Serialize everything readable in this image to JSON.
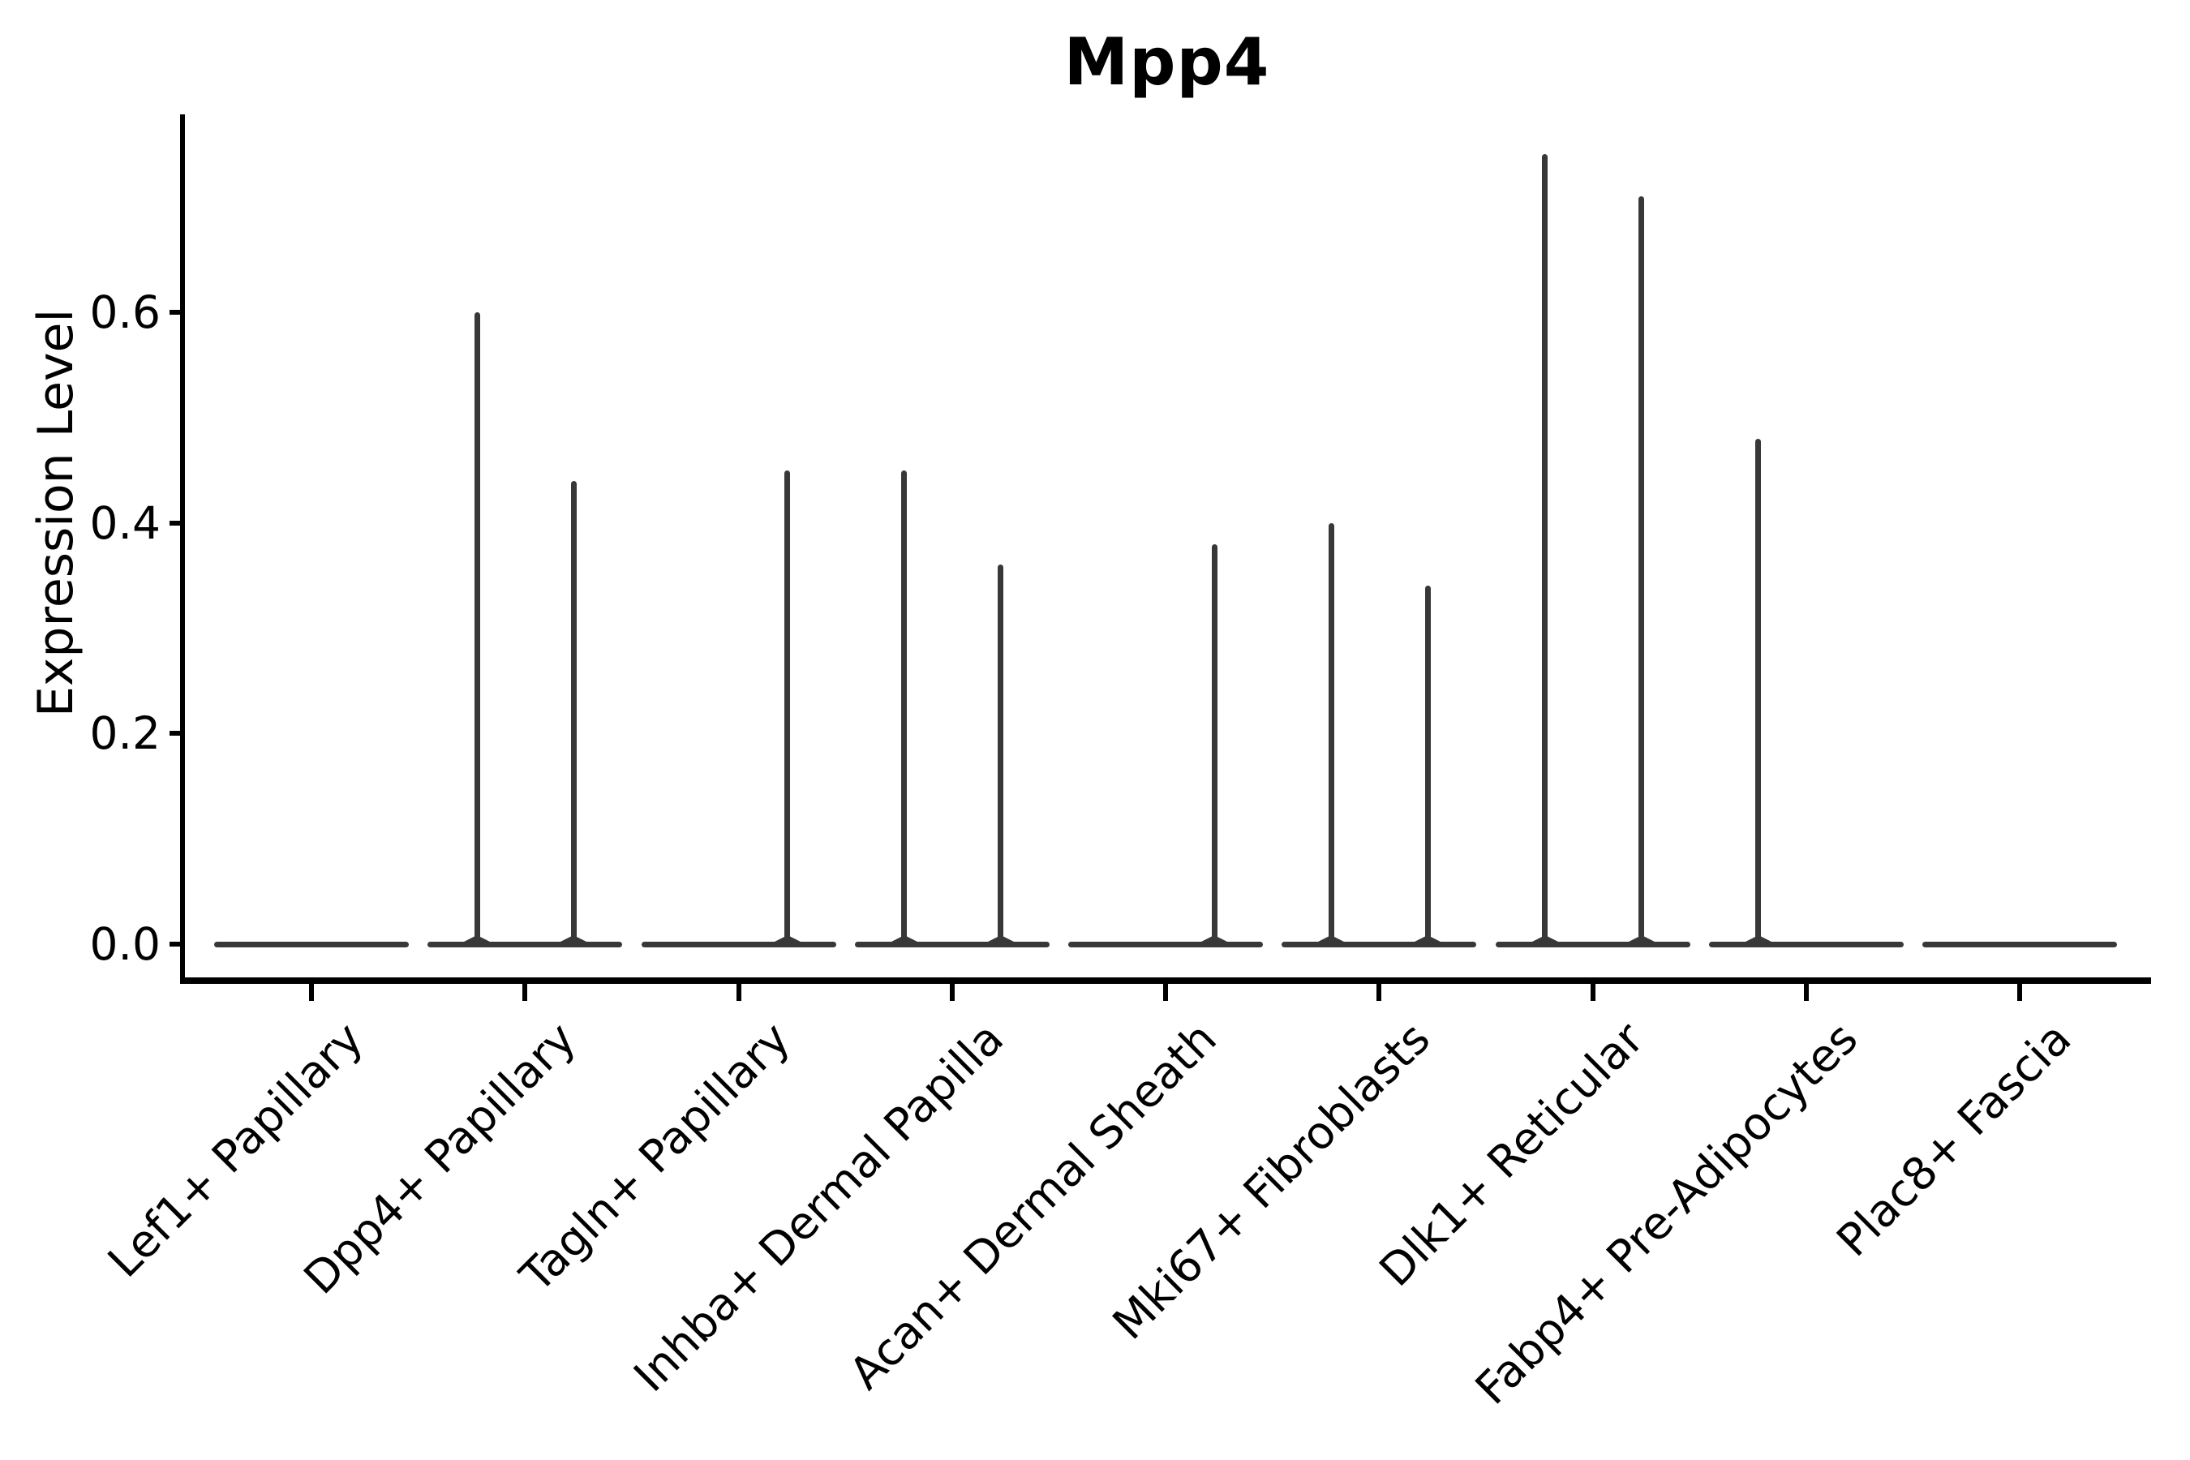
{
  "figure": {
    "title": "Mpp4",
    "ylabel": "Expression Level"
  },
  "chart_data": {
    "type": "violin",
    "title": "Mpp4",
    "xlabel": "",
    "ylabel": "Expression Level",
    "grid": false,
    "legend": null,
    "ylim": [
      -0.0375,
      0.7875
    ],
    "y_ticks": [
      {
        "label": "0.0",
        "value": 0.0
      },
      {
        "label": "0.2",
        "value": 0.2
      },
      {
        "label": "0.4",
        "value": 0.4
      },
      {
        "label": "0.6",
        "value": 0.6
      }
    ],
    "categories": [
      "Lef1+ Papillary",
      "Dpp4+ Papillary",
      "Tagln+ Papillary",
      "Inhba+ Dermal Papilla",
      "Acan+ Dermal Sheath",
      "Mki67+ Fibroblasts",
      "Dlk1+ Reticular",
      "Fabp4+ Pre-Adipocytes",
      "Plac8+ Fascia"
    ],
    "violins": [
      {
        "category": "Lef1+ Papillary",
        "baseline_value": 0.0,
        "spikes": []
      },
      {
        "category": "Dpp4+ Papillary",
        "baseline_value": 0.0,
        "spikes": [
          {
            "side": "left",
            "max_value": 0.6
          },
          {
            "side": "right",
            "max_value": 0.44
          }
        ]
      },
      {
        "category": "Tagln+ Papillary",
        "baseline_value": 0.0,
        "spikes": [
          {
            "side": "right",
            "max_value": 0.45
          }
        ]
      },
      {
        "category": "Inhba+ Dermal Papilla",
        "baseline_value": 0.0,
        "spikes": [
          {
            "side": "left",
            "max_value": 0.45
          },
          {
            "side": "right",
            "max_value": 0.36
          }
        ]
      },
      {
        "category": "Acan+ Dermal Sheath",
        "baseline_value": 0.0,
        "spikes": [
          {
            "side": "right",
            "max_value": 0.38
          }
        ]
      },
      {
        "category": "Mki67+ Fibroblasts",
        "baseline_value": 0.0,
        "spikes": [
          {
            "side": "left",
            "max_value": 0.4
          },
          {
            "side": "right",
            "max_value": 0.34
          }
        ]
      },
      {
        "category": "Dlk1+ Reticular",
        "baseline_value": 0.0,
        "spikes": [
          {
            "side": "left",
            "max_value": 0.75
          },
          {
            "side": "right",
            "max_value": 0.71
          }
        ]
      },
      {
        "category": "Fabp4+ Pre-Adipocytes",
        "baseline_value": 0.0,
        "spikes": [
          {
            "side": "left",
            "max_value": 0.48
          }
        ]
      },
      {
        "category": "Plac8+ Fascia",
        "baseline_value": 0.0,
        "spikes": []
      }
    ],
    "colors": {
      "violin_line": "#383838",
      "axis": "#000000",
      "text": "#000000",
      "background": "#ffffff"
    }
  }
}
